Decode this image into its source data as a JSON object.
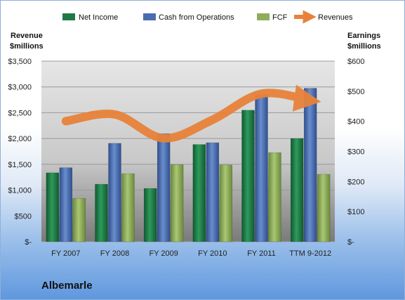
{
  "company": "Albemarle",
  "legend": {
    "net_income": "Net Income",
    "cfo": "Cash from Operations",
    "fcf": "FCF",
    "revenues": "Revenues"
  },
  "left_axis_title": [
    "Revenue",
    "$millions"
  ],
  "right_axis_title": [
    "Earnings",
    "$millions"
  ],
  "colors": {
    "net_income": "#1e7a45",
    "cfo": "#4a6db0",
    "fcf": "#8fae5a",
    "revenues": "#e8823a"
  },
  "chart_data": {
    "type": "bar",
    "categories": [
      "FY 2007",
      "FY 2008",
      "FY 2009",
      "FY 2010",
      "FY 2011",
      "TTM 9-2012"
    ],
    "series": [
      {
        "name": "Net Income",
        "axis": "right",
        "values": [
          229,
          191,
          177,
          323,
          437,
          343
        ]
      },
      {
        "name": "Cash from Operations",
        "axis": "right",
        "values": [
          246,
          327,
          359,
          329,
          488,
          510
        ]
      },
      {
        "name": "FCF",
        "axis": "right",
        "values": [
          144,
          226,
          256,
          255,
          296,
          224
        ]
      },
      {
        "name": "Revenues",
        "axis": "left",
        "type": "line",
        "values": [
          2336,
          2467,
          2005,
          2363,
          2869,
          2740
        ]
      }
    ],
    "left_axis": {
      "min": 0,
      "max": 3500,
      "step": 500,
      "tick_labels": [
        "$-",
        "$500",
        "$1,000",
        "$1,500",
        "$2,000",
        "$2,500",
        "$3,000",
        "$3,500"
      ]
    },
    "right_axis": {
      "min": 0,
      "max": 600,
      "step": 100,
      "tick_labels": [
        "$-",
        "$100",
        "$200",
        "$300",
        "$400",
        "$500",
        "$600"
      ]
    },
    "grid": true,
    "legend_position": "top"
  }
}
